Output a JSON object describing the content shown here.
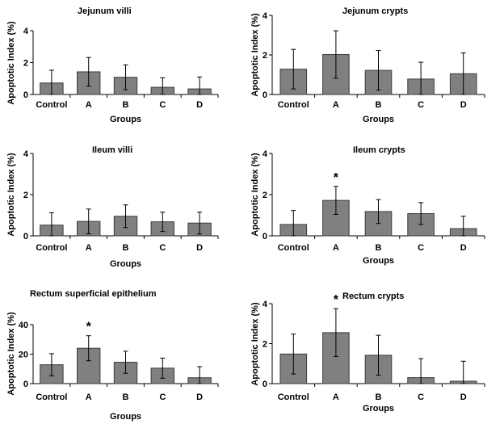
{
  "chart_data": [
    {
      "type": "bar",
      "title": "Jejunum villi",
      "xlabel": "Groups",
      "ylabel": "Apoptotic Index (%)",
      "categories": [
        "Control",
        "A",
        "B",
        "C",
        "D"
      ],
      "values": [
        0.72,
        1.42,
        1.08,
        0.45,
        0.35
      ],
      "errors": [
        0.8,
        0.9,
        0.78,
        0.6,
        0.75
      ],
      "significant": [
        false,
        false,
        false,
        false,
        false
      ],
      "ylim": [
        0,
        4
      ],
      "yticks": [
        0,
        2,
        4
      ],
      "show_xlabel": true
    },
    {
      "type": "bar",
      "title": "Jejunum crypts",
      "xlabel": "Groups",
      "ylabel": "Apoptotic Index (%)",
      "categories": [
        "Control",
        "A",
        "B",
        "C",
        "D"
      ],
      "values": [
        1.28,
        2.02,
        1.22,
        0.78,
        1.05
      ],
      "errors": [
        1.0,
        1.2,
        1.0,
        0.85,
        1.05
      ],
      "significant": [
        false,
        false,
        false,
        false,
        false
      ],
      "ylim": [
        0,
        4
      ],
      "yticks": [
        0,
        2,
        4
      ],
      "show_xlabel": true
    },
    {
      "type": "bar",
      "title": "Ileum villi",
      "xlabel": "Groups",
      "ylabel": "Apoptotic Index (%)",
      "categories": [
        "Control",
        "A",
        "B",
        "C",
        "D"
      ],
      "values": [
        0.52,
        0.7,
        0.95,
        0.68,
        0.62
      ],
      "errors": [
        0.6,
        0.6,
        0.55,
        0.47,
        0.53
      ],
      "significant": [
        false,
        false,
        false,
        false,
        false
      ],
      "ylim": [
        0,
        4
      ],
      "yticks": [
        0,
        2,
        4
      ],
      "show_xlabel": true
    },
    {
      "type": "bar",
      "title": "Ileum crypts",
      "xlabel": "Groups",
      "ylabel": "Apoptotic Index (%)",
      "categories": [
        "Control",
        "A",
        "B",
        "C",
        "D"
      ],
      "values": [
        0.55,
        1.72,
        1.18,
        1.08,
        0.35
      ],
      "errors": [
        0.68,
        0.68,
        0.58,
        0.53,
        0.6
      ],
      "significant": [
        false,
        true,
        false,
        false,
        false
      ],
      "ylim": [
        0,
        4
      ],
      "yticks": [
        0,
        2,
        4
      ],
      "show_xlabel": true
    },
    {
      "type": "bar",
      "title": "Rectum superficial epithelium",
      "xlabel": "Groups",
      "ylabel": "Apoptotic Index (%)",
      "categories": [
        "Control",
        "A",
        "B",
        "C",
        "D"
      ],
      "values": [
        12.8,
        24.0,
        14.5,
        10.5,
        4.0
      ],
      "errors": [
        7.5,
        8.5,
        7.5,
        6.8,
        7.5
      ],
      "significant": [
        false,
        true,
        false,
        false,
        false
      ],
      "ylim": [
        0,
        40
      ],
      "yticks": [
        0,
        20,
        40
      ],
      "show_xlabel": true
    },
    {
      "type": "bar",
      "title": "Rectum crypts",
      "xlabel": "Groups",
      "ylabel": "Apoptotic Index (%)",
      "categories": [
        "Control",
        "A",
        "B",
        "C",
        "D"
      ],
      "values": [
        1.48,
        2.55,
        1.42,
        0.3,
        0.12
      ],
      "errors": [
        1.0,
        1.2,
        1.0,
        0.95,
        1.0
      ],
      "significant": [
        false,
        true,
        false,
        false,
        false
      ],
      "ylim": [
        0,
        4
      ],
      "yticks": [
        0,
        2,
        4
      ],
      "show_xlabel": true
    }
  ],
  "significance_symbol": "*",
  "colors": {
    "bar_fill": "#808080",
    "bar_stroke": "#3c3c3c",
    "axis": "#000000"
  }
}
